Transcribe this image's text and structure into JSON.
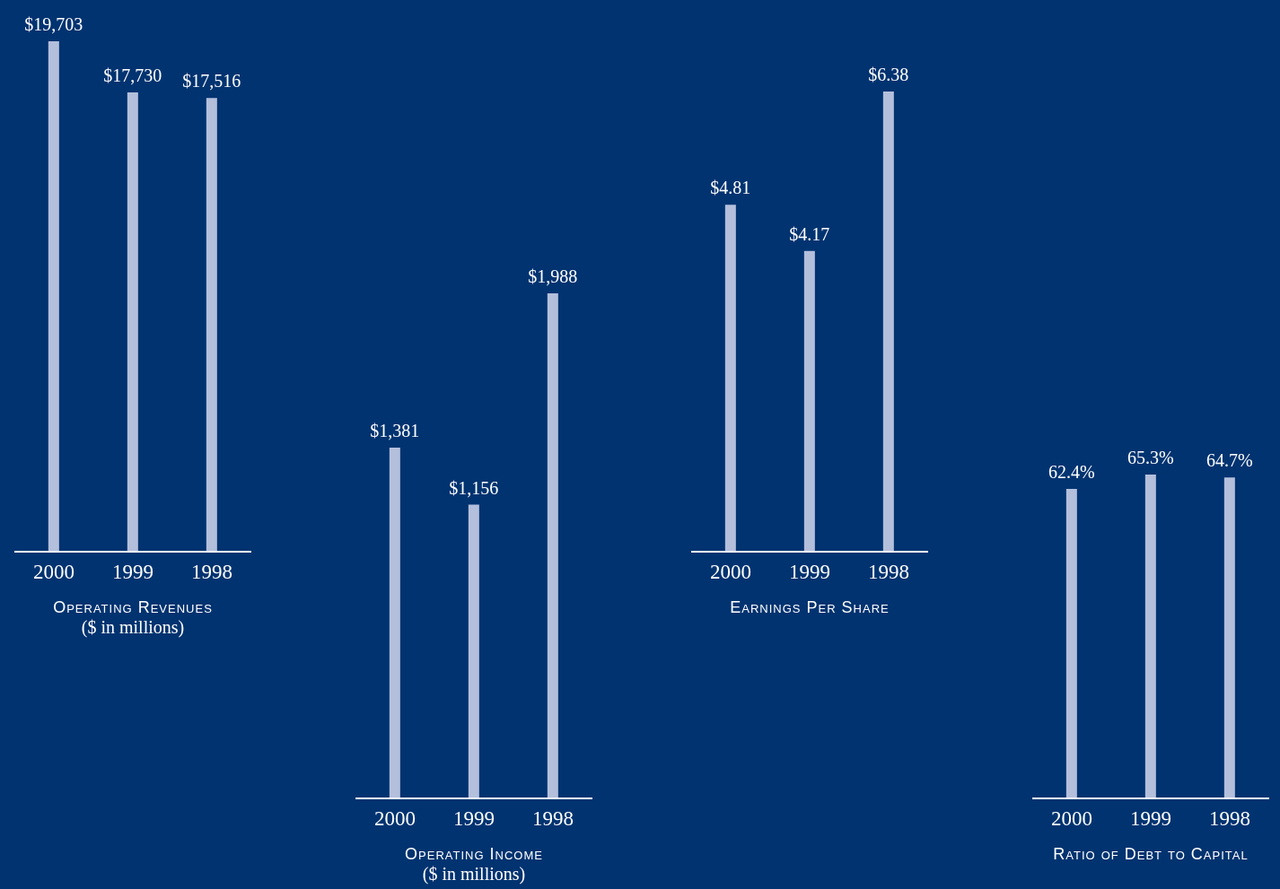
{
  "chart_data": [
    {
      "type": "bar",
      "title": "Operating Revenues",
      "subtitle": "($ in millions)",
      "categories": [
        "2000",
        "1999",
        "1998"
      ],
      "values": [
        19703,
        17730,
        17516
      ],
      "value_labels": [
        "$19,703",
        "$17,730",
        "$17,516"
      ],
      "color": "#b4bfdc"
    },
    {
      "type": "bar",
      "title": "Operating Income",
      "subtitle": "($ in millions)",
      "categories": [
        "2000",
        "1999",
        "1998"
      ],
      "values": [
        1381,
        1156,
        1988
      ],
      "value_labels": [
        "$1,381",
        "$1,156",
        "$1,988"
      ],
      "color": "#b4bfdc"
    },
    {
      "type": "bar",
      "title": "Earnings Per Share",
      "categories": [
        "2000",
        "1999",
        "1998"
      ],
      "values": [
        4.81,
        4.17,
        6.38
      ],
      "value_labels": [
        "$4.81",
        "$4.17",
        "$6.38"
      ],
      "color": "#b4bfdc"
    },
    {
      "type": "bar",
      "title": "Ratio of Debt to Capital",
      "categories": [
        "2000",
        "1999",
        "1998"
      ],
      "values": [
        62.4,
        65.3,
        64.7
      ],
      "value_labels": [
        "62.4%",
        "65.3%",
        "64.7%"
      ],
      "color": "#b4bfdc"
    }
  ]
}
